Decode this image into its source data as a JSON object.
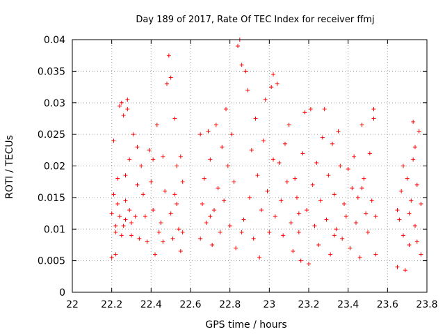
{
  "chart_data": {
    "type": "scatter",
    "title": "Day 189 of 2017, Rate Of TEC Index for receiver ffmj",
    "xlabel": "GPS time / hours",
    "ylabel": "ROTI / TECUs",
    "xlim": [
      22,
      23.8
    ],
    "ylim": [
      0,
      0.04
    ],
    "xticks": [
      "22",
      "22.2",
      "22.4",
      "22.6",
      "22.8",
      "23",
      "23.2",
      "23.4",
      "23.6",
      "23.8"
    ],
    "yticks": [
      "0",
      "0.005",
      "0.01",
      "0.015",
      "0.02",
      "0.025",
      "0.03",
      "0.035",
      "0.04"
    ],
    "grid": true,
    "marker": "+",
    "color": "#ff0000",
    "series": [
      {
        "points": [
          [
            22.2,
            0.0055
          ],
          [
            22.2,
            0.0125
          ],
          [
            22.21,
            0.0155
          ],
          [
            22.21,
            0.024
          ],
          [
            22.22,
            0.0105
          ],
          [
            22.22,
            0.0095
          ],
          [
            22.23,
            0.014
          ],
          [
            22.23,
            0.018
          ],
          [
            22.24,
            0.0295
          ],
          [
            22.24,
            0.012
          ],
          [
            22.25,
            0.03
          ],
          [
            22.25,
            0.009
          ],
          [
            22.26,
            0.028
          ],
          [
            22.26,
            0.0105
          ],
          [
            22.27,
            0.0115
          ],
          [
            22.27,
            0.0185
          ],
          [
            22.28,
            0.029
          ],
          [
            22.28,
            0.0305
          ],
          [
            22.29,
            0.013
          ],
          [
            22.29,
            0.021
          ],
          [
            22.3,
            0.009
          ],
          [
            22.3,
            0.011
          ],
          [
            22.31,
            0.025
          ],
          [
            22.32,
            0.012
          ],
          [
            22.33,
            0.023
          ],
          [
            22.34,
            0.0085
          ],
          [
            22.35,
            0.02
          ],
          [
            22.36,
            0.0155
          ],
          [
            22.37,
            0.012
          ],
          [
            22.38,
            0.008
          ],
          [
            22.39,
            0.0225
          ],
          [
            22.4,
            0.0175
          ],
          [
            22.41,
            0.013
          ],
          [
            22.42,
            0.006
          ],
          [
            22.43,
            0.0265
          ],
          [
            22.44,
            0.0095
          ],
          [
            22.45,
            0.011
          ],
          [
            22.46,
            0.0215
          ],
          [
            22.47,
            0.016
          ],
          [
            22.48,
            0.033
          ],
          [
            22.49,
            0.0375
          ],
          [
            22.5,
            0.034
          ],
          [
            22.5,
            0.0125
          ],
          [
            22.51,
            0.0085
          ],
          [
            22.52,
            0.0275
          ],
          [
            22.53,
            0.02
          ],
          [
            22.53,
            0.014
          ],
          [
            22.54,
            0.01
          ],
          [
            22.55,
            0.0065
          ],
          [
            22.55,
            0.0215
          ],
          [
            22.56,
            0.0095
          ],
          [
            22.56,
            0.0175
          ],
          [
            22.22,
            0.006
          ],
          [
            22.27,
            0.0145
          ],
          [
            22.33,
            0.017
          ],
          [
            22.41,
            0.021
          ],
          [
            22.46,
            0.008
          ],
          [
            22.52,
            0.0155
          ],
          [
            22.65,
            0.025
          ],
          [
            22.65,
            0.0085
          ],
          [
            22.66,
            0.014
          ],
          [
            22.67,
            0.018
          ],
          [
            22.68,
            0.011
          ],
          [
            22.69,
            0.0255
          ],
          [
            22.7,
            0.021
          ],
          [
            22.71,
            0.0075
          ],
          [
            22.72,
            0.013
          ],
          [
            22.73,
            0.0265
          ],
          [
            22.74,
            0.0165
          ],
          [
            22.75,
            0.0095
          ],
          [
            22.76,
            0.023
          ],
          [
            22.77,
            0.0145
          ],
          [
            22.78,
            0.029
          ],
          [
            22.79,
            0.02
          ],
          [
            22.8,
            0.0105
          ],
          [
            22.81,
            0.025
          ],
          [
            22.82,
            0.0175
          ],
          [
            22.83,
            0.007
          ],
          [
            22.84,
            0.039
          ],
          [
            22.85,
            0.04
          ],
          [
            22.86,
            0.036
          ],
          [
            22.87,
            0.0115
          ],
          [
            22.88,
            0.035
          ],
          [
            22.89,
            0.032
          ],
          [
            22.9,
            0.015
          ],
          [
            22.91,
            0.0225
          ],
          [
            22.92,
            0.0085
          ],
          [
            22.93,
            0.0275
          ],
          [
            22.94,
            0.0185
          ],
          [
            22.95,
            0.0055
          ],
          [
            22.96,
            0.013
          ],
          [
            22.97,
            0.024
          ],
          [
            22.98,
            0.0305
          ],
          [
            22.99,
            0.016
          ],
          [
            23.0,
            0.0095
          ],
          [
            23.01,
            0.0325
          ],
          [
            23.02,
            0.0345
          ],
          [
            23.03,
            0.012
          ],
          [
            23.04,
            0.033
          ],
          [
            23.05,
            0.0205
          ],
          [
            23.06,
            0.0145
          ],
          [
            23.07,
            0.009
          ],
          [
            23.08,
            0.0235
          ],
          [
            23.09,
            0.0175
          ],
          [
            23.1,
            0.0265
          ],
          [
            23.11,
            0.011
          ],
          [
            23.12,
            0.0065
          ],
          [
            23.13,
            0.018
          ],
          [
            23.14,
            0.015
          ],
          [
            23.15,
            0.0095
          ],
          [
            23.16,
            0.005
          ],
          [
            23.17,
            0.022
          ],
          [
            23.18,
            0.0285
          ],
          [
            23.19,
            0.013
          ],
          [
            23.2,
            0.0045
          ],
          [
            23.21,
            0.029
          ],
          [
            23.22,
            0.017
          ],
          [
            23.23,
            0.0105
          ],
          [
            23.24,
            0.0205
          ],
          [
            23.25,
            0.0075
          ],
          [
            23.26,
            0.0145
          ],
          [
            23.27,
            0.0245
          ],
          [
            23.28,
            0.029
          ],
          [
            23.29,
            0.0115
          ],
          [
            23.3,
            0.0185
          ],
          [
            23.31,
            0.006
          ],
          [
            23.32,
            0.0235
          ],
          [
            23.33,
            0.0155
          ],
          [
            23.34,
            0.01
          ],
          [
            23.35,
            0.0255
          ],
          [
            23.36,
            0.02
          ],
          [
            23.37,
            0.0085
          ],
          [
            23.38,
            0.014
          ],
          [
            23.39,
            0.012
          ],
          [
            23.4,
            0.0195
          ],
          [
            23.41,
            0.007
          ],
          [
            23.42,
            0.0165
          ],
          [
            23.43,
            0.0215
          ],
          [
            23.44,
            0.011
          ],
          [
            23.45,
            0.015
          ],
          [
            23.46,
            0.0055
          ],
          [
            23.47,
            0.0265
          ],
          [
            23.48,
            0.018
          ],
          [
            23.49,
            0.0125
          ],
          [
            23.5,
            0.0095
          ],
          [
            23.51,
            0.022
          ],
          [
            23.52,
            0.0145
          ],
          [
            23.53,
            0.0275
          ],
          [
            23.53,
            0.029
          ],
          [
            23.54,
            0.012
          ],
          [
            23.54,
            0.006
          ],
          [
            22.7,
            0.012
          ],
          [
            22.86,
            0.0095
          ],
          [
            23.02,
            0.021
          ],
          [
            23.15,
            0.0125
          ],
          [
            23.33,
            0.009
          ],
          [
            23.47,
            0.0165
          ],
          [
            23.65,
            0.013
          ],
          [
            23.65,
            0.004
          ],
          [
            23.66,
            0.0115
          ],
          [
            23.67,
            0.016
          ],
          [
            23.68,
            0.009
          ],
          [
            23.69,
            0.0035
          ],
          [
            23.7,
            0.018
          ],
          [
            23.71,
            0.0075
          ],
          [
            23.72,
            0.0145
          ],
          [
            23.73,
            0.021
          ],
          [
            23.73,
            0.027
          ],
          [
            23.74,
            0.0105
          ],
          [
            23.75,
            0.017
          ],
          [
            23.75,
            0.008
          ],
          [
            23.76,
            0.0255
          ],
          [
            23.77,
            0.014
          ],
          [
            23.77,
            0.006
          ],
          [
            23.68,
            0.02
          ],
          [
            23.71,
            0.0125
          ],
          [
            23.74,
            0.023
          ]
        ]
      }
    ]
  }
}
